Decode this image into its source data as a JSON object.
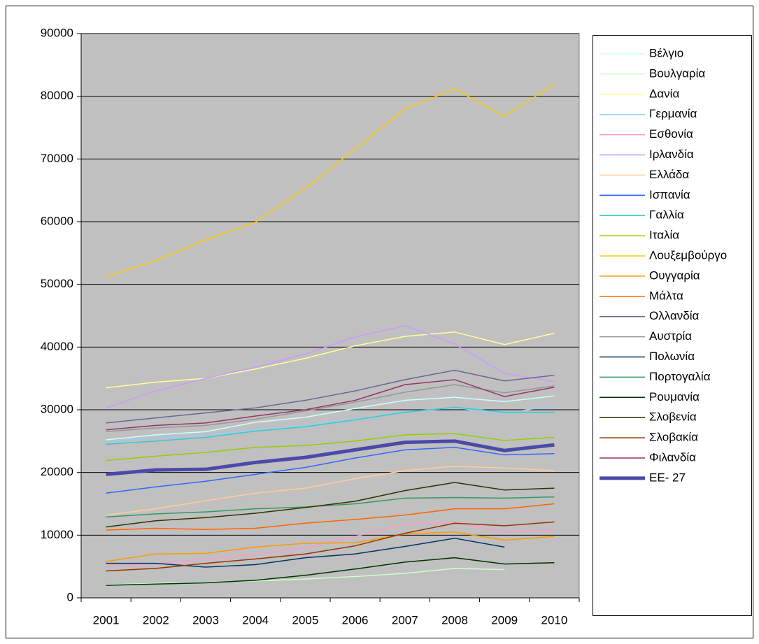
{
  "chart_data": {
    "type": "line",
    "categories": [
      "2001",
      "2002",
      "2003",
      "2004",
      "2005",
      "2006",
      "2007",
      "2008",
      "2009",
      "2010"
    ],
    "ylim": [
      0,
      90000
    ],
    "yticks": [
      0,
      10000,
      20000,
      30000,
      40000,
      50000,
      60000,
      70000,
      80000,
      90000
    ],
    "grid": true,
    "legend": "right",
    "series": [
      {
        "name": "Βέλγιο",
        "color": "#ccffff",
        "values": [
          25200,
          26000,
          26500,
          28000,
          28800,
          30200,
          31500,
          32000,
          31300,
          32200
        ]
      },
      {
        "name": "Βουλγαρία",
        "color": "#ccffcc",
        "values": [
          2100,
          2300,
          2500,
          2700,
          3000,
          3400,
          3900,
          4700,
          4500,
          null
        ]
      },
      {
        "name": "Δανία",
        "color": "#ffff99",
        "values": [
          33500,
          34400,
          35000,
          36500,
          38200,
          40200,
          41700,
          42400,
          40400,
          42200
        ]
      },
      {
        "name": "Γερμανία",
        "color": "#99ccff",
        "values": [
          25000,
          25500,
          26000,
          26800,
          27500,
          28500,
          29700,
          30300,
          29400,
          30700
        ]
      },
      {
        "name": "Εσθονία",
        "color": "#ff99cc",
        "values": [
          5000,
          5500,
          6200,
          7000,
          8000,
          9800,
          11800,
          12000,
          10500,
          10800
        ]
      },
      {
        "name": "Ιρλανδία",
        "color": "#cc99ff",
        "values": [
          30300,
          33000,
          35000,
          36800,
          38900,
          41600,
          43400,
          40500,
          35800,
          34500
        ]
      },
      {
        "name": "Ελλάδα",
        "color": "#ffcc99",
        "values": [
          13200,
          14200,
          15500,
          16700,
          17500,
          19000,
          20300,
          21000,
          20700,
          20300
        ]
      },
      {
        "name": "Ισπανία",
        "color": "#3366ff",
        "values": [
          16700,
          17700,
          18600,
          19700,
          20800,
          22300,
          23600,
          24000,
          22800,
          23000
        ]
      },
      {
        "name": "Γαλλία",
        "color": "#33cccc",
        "values": [
          24500,
          25000,
          25600,
          26600,
          27300,
          28400,
          29600,
          30400,
          29600,
          29600
        ]
      },
      {
        "name": "Ιταλία",
        "color": "#99cc00",
        "values": [
          21900,
          22600,
          23200,
          24000,
          24300,
          25000,
          26000,
          26200,
          25100,
          25600
        ]
      },
      {
        "name": "Λουξεμβούργο",
        "color": "#ffcc00",
        "values": [
          51200,
          53800,
          57100,
          59900,
          65300,
          71600,
          78000,
          81200,
          76800,
          82000
        ]
      },
      {
        "name": "Ουγγαρία",
        "color": "#ff9900",
        "values": [
          5800,
          7000,
          7100,
          8100,
          8700,
          8800,
          10200,
          10500,
          9200,
          9800
        ]
      },
      {
        "name": "Μάλτα",
        "color": "#ff6600",
        "values": [
          10800,
          11100,
          10900,
          11100,
          11900,
          12500,
          13200,
          14200,
          14200,
          15000
        ]
      },
      {
        "name": "Ολλανδία",
        "color": "#666699",
        "values": [
          27900,
          28700,
          29500,
          30300,
          31500,
          33000,
          34800,
          36300,
          34600,
          35500
        ]
      },
      {
        "name": "Αυστρία",
        "color": "#969696",
        "values": [
          26500,
          27100,
          27500,
          28500,
          29800,
          31200,
          32800,
          34000,
          32700,
          33800
        ]
      },
      {
        "name": "Πολωνία",
        "color": "#003366",
        "values": [
          5500,
          5500,
          4900,
          5300,
          6400,
          7000,
          8200,
          9500,
          8100,
          null
        ]
      },
      {
        "name": "Πορτογαλία",
        "color": "#339966",
        "values": [
          12900,
          13400,
          13700,
          14200,
          14500,
          15000,
          15900,
          16000,
          15900,
          16100
        ]
      },
      {
        "name": "Ρουμανία",
        "color": "#003300",
        "values": [
          2000,
          2200,
          2400,
          2800,
          3600,
          4600,
          5700,
          6400,
          5400,
          5600
        ]
      },
      {
        "name": "Σλοβενία",
        "color": "#333300",
        "values": [
          11300,
          12300,
          12800,
          13500,
          14400,
          15400,
          17100,
          18400,
          17200,
          17500
        ]
      },
      {
        "name": "Σλοβακία",
        "color": "#993300",
        "values": [
          4300,
          4700,
          5500,
          6200,
          7000,
          8300,
          10300,
          11900,
          11500,
          12100
        ]
      },
      {
        "name": "Φιλανδία",
        "color": "#993366",
        "values": [
          26800,
          27500,
          27900,
          29000,
          30000,
          31500,
          34000,
          34800,
          32100,
          33600
        ]
      },
      {
        "name": "ΕΕ- 27",
        "color": "#4a4aa8",
        "width": 5,
        "values": [
          19700,
          20400,
          20500,
          21600,
          22400,
          23600,
          24800,
          25000,
          23500,
          24400
        ]
      }
    ]
  }
}
